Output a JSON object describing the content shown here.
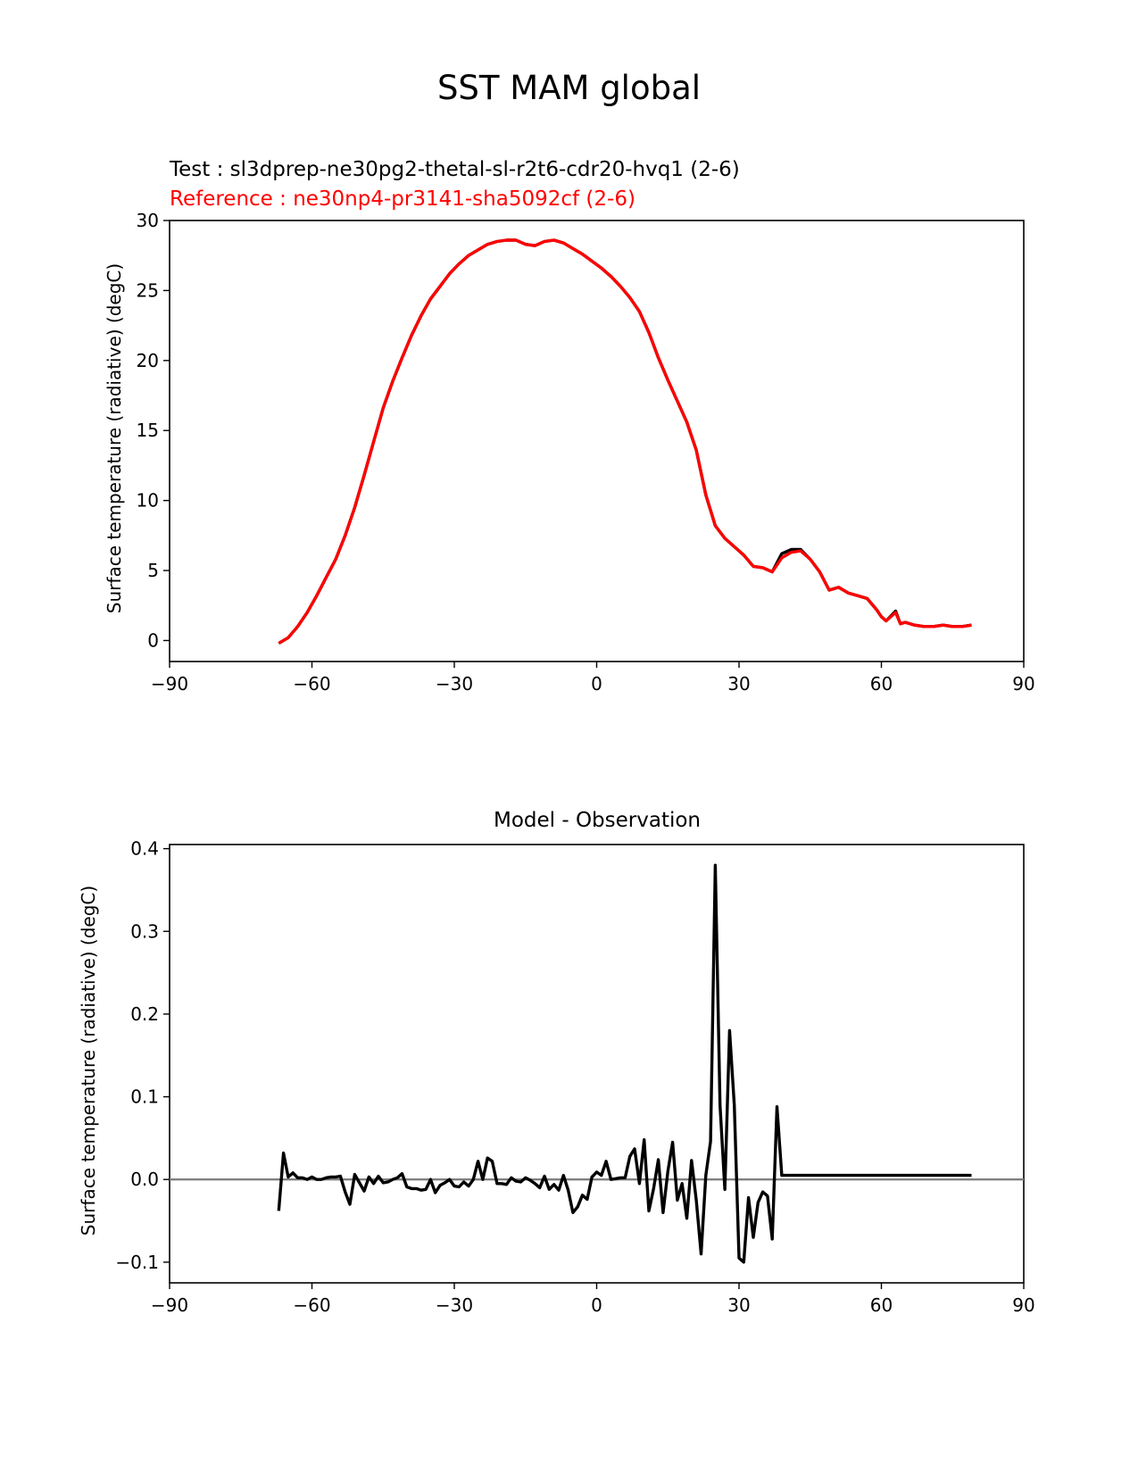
{
  "figure": {
    "title": "SST MAM global"
  },
  "chart_data": [
    {
      "type": "line",
      "subtitle_test": "Test : sl3dprep-ne30pg2-thetal-sl-r2t6-cdr20-hvq1 (2-6)",
      "subtitle_reference": "Reference : ne30np4-pr3141-sha5092cf (2-6)",
      "ylabel": "Surface temperature (radiative) (degC)",
      "xlim": [
        -90,
        90
      ],
      "ylim": [
        -1.5,
        30
      ],
      "xticks": [
        -90,
        -60,
        -30,
        0,
        30,
        60,
        90
      ],
      "xtick_labels": [
        "−90",
        "−60",
        "−30",
        "0",
        "30",
        "60",
        "90"
      ],
      "yticks": [
        0,
        5,
        10,
        15,
        20,
        25,
        30
      ],
      "ytick_labels": [
        "0",
        "5",
        "10",
        "15",
        "20",
        "25",
        "30"
      ],
      "colors": {
        "test": "#000000",
        "reference": "#ff0000"
      },
      "series": [
        {
          "role": "test",
          "x": [
            -67,
            -65,
            -63,
            -61,
            -59,
            -57,
            -55,
            -53,
            -51,
            -49,
            -47,
            -45,
            -43,
            -41,
            -39,
            -37,
            -35,
            -33,
            -31,
            -29,
            -27,
            -25,
            -23,
            -21,
            -19,
            -17,
            -15,
            -13,
            -11,
            -9,
            -7,
            -5,
            -3,
            -1,
            1,
            3,
            5,
            7,
            9,
            11,
            13,
            15,
            17,
            19,
            21,
            23,
            25,
            27,
            29,
            31,
            33,
            35,
            37,
            39,
            41,
            43,
            45,
            47,
            49,
            51,
            53,
            55,
            57,
            59,
            60,
            61,
            63,
            64,
            65,
            67,
            69,
            71,
            73,
            75,
            76,
            77,
            79
          ],
          "y": [
            -0.2,
            0.2,
            1.0,
            2.0,
            3.2,
            4.5,
            5.8,
            7.5,
            9.5,
            11.8,
            14.2,
            16.6,
            18.5,
            20.2,
            21.8,
            23.2,
            24.4,
            25.3,
            26.2,
            26.9,
            27.5,
            27.9,
            28.3,
            28.5,
            28.6,
            28.6,
            28.3,
            28.2,
            28.5,
            28.6,
            28.4,
            28.0,
            27.6,
            27.1,
            26.6,
            26.0,
            25.3,
            24.5,
            23.5,
            22.0,
            20.2,
            18.6,
            17.1,
            15.6,
            13.6,
            10.4,
            8.2,
            7.3,
            6.7,
            6.1,
            5.3,
            5.2,
            4.9,
            6.2,
            6.5,
            6.5,
            5.8,
            4.9,
            3.6,
            3.8,
            3.4,
            3.2,
            3.0,
            2.2,
            1.7,
            1.4,
            2.1,
            1.2,
            1.3,
            1.1,
            1.0,
            1.0,
            1.1,
            1.0,
            1.0,
            1.0,
            1.1
          ]
        },
        {
          "role": "reference",
          "x": [
            -67,
            -65,
            -63,
            -61,
            -59,
            -57,
            -55,
            -53,
            -51,
            -49,
            -47,
            -45,
            -43,
            -41,
            -39,
            -37,
            -35,
            -33,
            -31,
            -29,
            -27,
            -25,
            -23,
            -21,
            -19,
            -17,
            -15,
            -13,
            -11,
            -9,
            -7,
            -5,
            -3,
            -1,
            1,
            3,
            5,
            7,
            9,
            11,
            13,
            15,
            17,
            19,
            21,
            23,
            25,
            27,
            29,
            31,
            33,
            35,
            37,
            39,
            41,
            43,
            45,
            47,
            49,
            51,
            53,
            55,
            57,
            59,
            60,
            61,
            63,
            64,
            65,
            67,
            69,
            71,
            73,
            75,
            76,
            77,
            79
          ],
          "y": [
            -0.2,
            0.2,
            1.0,
            2.0,
            3.2,
            4.5,
            5.8,
            7.5,
            9.5,
            11.8,
            14.2,
            16.6,
            18.5,
            20.2,
            21.8,
            23.2,
            24.4,
            25.3,
            26.2,
            26.9,
            27.5,
            27.9,
            28.3,
            28.5,
            28.6,
            28.6,
            28.3,
            28.2,
            28.5,
            28.6,
            28.4,
            28.0,
            27.6,
            27.1,
            26.6,
            26.0,
            25.3,
            24.5,
            23.5,
            22.0,
            20.2,
            18.6,
            17.1,
            15.6,
            13.6,
            10.4,
            8.2,
            7.3,
            6.7,
            6.1,
            5.3,
            5.2,
            4.9,
            5.9,
            6.3,
            6.4,
            5.8,
            4.9,
            3.6,
            3.8,
            3.4,
            3.2,
            3.0,
            2.2,
            1.7,
            1.4,
            2.0,
            1.2,
            1.3,
            1.1,
            1.0,
            1.0,
            1.1,
            1.0,
            1.0,
            1.0,
            1.1
          ]
        }
      ]
    },
    {
      "type": "line",
      "title": "Model - Observation",
      "ylabel": "Surface temperature (radiative) (degC)",
      "xlim": [
        -90,
        90
      ],
      "ylim": [
        -0.125,
        0.405
      ],
      "xticks": [
        -90,
        -60,
        -30,
        0,
        30,
        60,
        90
      ],
      "xtick_labels": [
        "−90",
        "−60",
        "−30",
        "0",
        "30",
        "60",
        "90"
      ],
      "yticks": [
        -0.1,
        0.0,
        0.1,
        0.2,
        0.3,
        0.4
      ],
      "ytick_labels": [
        "−0.1",
        "0.0",
        "0.1",
        "0.2",
        "0.3",
        "0.4"
      ],
      "zero_line": 0,
      "colors": {
        "diff": "#000000",
        "zero": "#808080"
      },
      "series": [
        {
          "role": "diff",
          "x": [
            -67,
            -66,
            -65,
            -64,
            -63,
            -62,
            -61,
            -60,
            -59,
            -58,
            -57,
            -56,
            -55,
            -54,
            -53,
            -52,
            -51,
            -50,
            -49,
            -48,
            -47,
            -46,
            -45,
            -44,
            -43,
            -42,
            -41,
            -40,
            -39,
            -38,
            -37,
            -36,
            -35,
            -34,
            -33,
            -32,
            -31,
            -30,
            -29,
            -28,
            -27,
            -26,
            -25,
            -24,
            -23,
            -22,
            -21,
            -20,
            -19,
            -18,
            -17,
            -16,
            -15,
            -14,
            -13,
            -12,
            -11,
            -10,
            -9,
            -8,
            -7,
            -6,
            -5,
            -4,
            -3,
            -2,
            -1,
            0,
            1,
            2,
            3,
            4,
            5,
            6,
            7,
            8,
            9,
            10,
            11,
            12,
            13,
            14,
            15,
            16,
            17,
            18,
            19,
            20,
            21,
            22,
            23,
            24,
            25,
            26,
            27,
            28,
            29,
            30,
            31,
            32,
            33,
            34,
            35,
            36,
            37,
            38,
            39,
            40,
            41,
            42,
            43,
            44,
            45,
            46,
            47,
            48,
            49,
            50,
            51,
            52,
            53,
            54,
            55,
            56,
            57,
            58,
            59,
            60,
            61,
            62,
            63,
            64,
            65,
            66,
            67,
            68,
            69,
            70,
            71,
            72,
            73,
            74,
            75,
            76,
            77,
            78,
            79
          ],
          "y": [
            -0.038,
            0.032,
            0.003,
            0.008,
            0.002,
            0.002,
            0.0,
            0.003,
            0.0,
            0.0,
            0.002,
            0.003,
            0.003,
            0.004,
            -0.015,
            -0.03,
            0.006,
            -0.004,
            -0.014,
            0.003,
            -0.005,
            0.004,
            -0.004,
            -0.003,
            0.0,
            0.002,
            0.007,
            -0.009,
            -0.011,
            -0.011,
            -0.013,
            -0.012,
            0.0,
            -0.016,
            -0.007,
            -0.004,
            0.0,
            -0.008,
            -0.009,
            -0.003,
            -0.008,
            0.0,
            0.022,
            0.0,
            0.026,
            0.022,
            -0.005,
            -0.005,
            -0.006,
            0.002,
            -0.002,
            -0.003,
            0.002,
            -0.001,
            -0.005,
            -0.01,
            0.004,
            -0.012,
            -0.006,
            -0.013,
            0.005,
            -0.013,
            -0.04,
            -0.033,
            -0.019,
            -0.024,
            0.003,
            0.009,
            0.005,
            0.022,
            0.0,
            0.001,
            0.002,
            0.002,
            0.028,
            0.037,
            -0.005,
            0.048,
            -0.038,
            -0.011,
            0.024,
            -0.04,
            0.01,
            0.045,
            -0.025,
            -0.005,
            -0.047,
            0.023,
            -0.025,
            -0.09,
            0.005,
            0.046,
            0.38,
            0.09,
            -0.012,
            0.18,
            0.09,
            -0.095,
            -0.1,
            -0.022,
            -0.07,
            -0.028,
            -0.015,
            -0.02,
            -0.072,
            0.088,
            0.005,
            0.005,
            0.005,
            0.005,
            0.005,
            0.005,
            0.005,
            0.005,
            0.005,
            0.005,
            0.005,
            0.005,
            0.005,
            0.005,
            0.005,
            0.005,
            0.005,
            0.005,
            0.005,
            0.005,
            0.005,
            0.005,
            0.005,
            0.005,
            0.005,
            0.005,
            0.005,
            0.005,
            0.005,
            0.005,
            0.005,
            0.005,
            0.005,
            0.005,
            0.005,
            0.005,
            0.005,
            0.005,
            0.005,
            0.005,
            0.005
          ]
        }
      ]
    }
  ]
}
